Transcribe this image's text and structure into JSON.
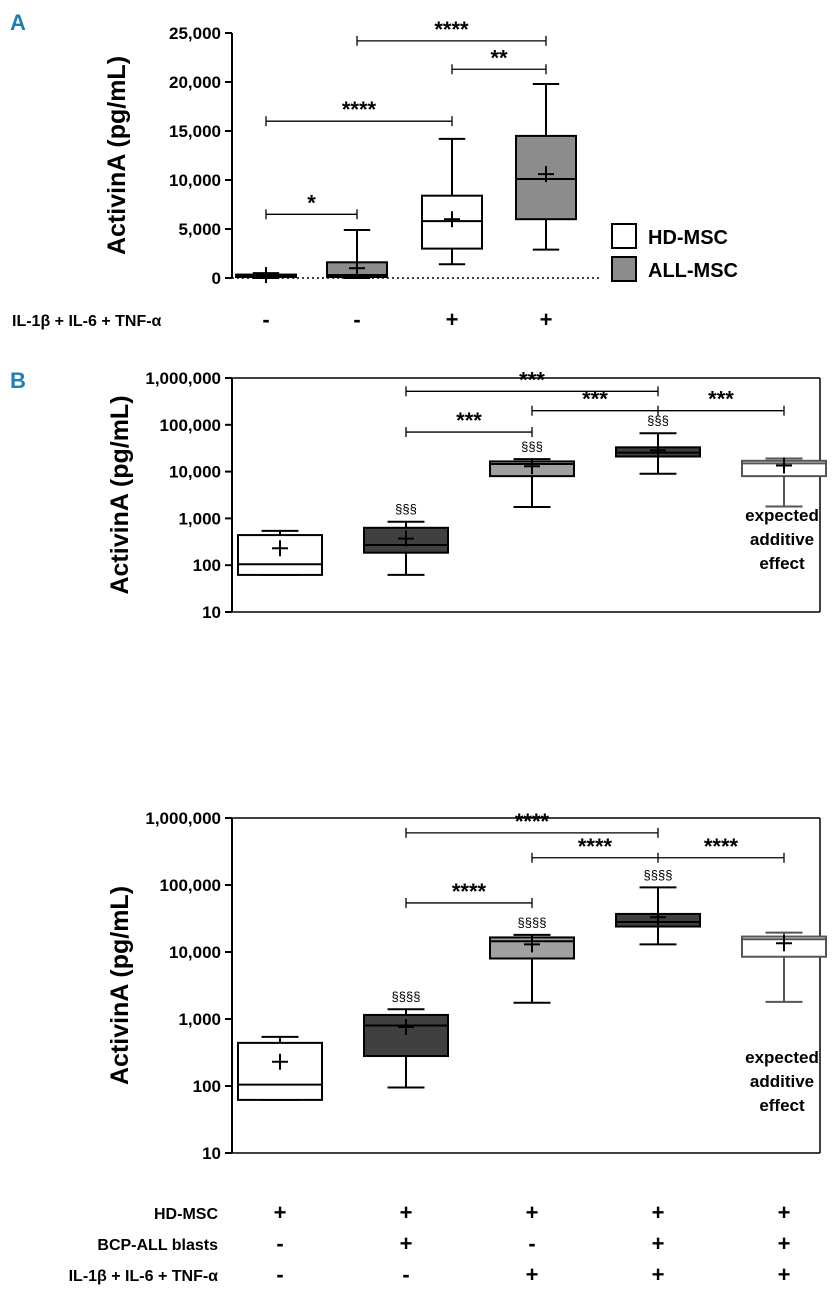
{
  "panel_labels": [
    "A",
    "B"
  ],
  "legend": [
    {
      "label": "HD-MSC",
      "color": "#ffffff"
    },
    {
      "label": "ALL-MSC",
      "color": "#8c8c8c"
    }
  ],
  "rows_a": [
    {
      "label": "IL-1β + IL-6 + TNF-α",
      "values": [
        "-",
        "-",
        "+",
        "+"
      ]
    }
  ],
  "rows_b": [
    {
      "label": "HD-MSC",
      "values": [
        "+",
        "+",
        "+",
        "+",
        "+"
      ]
    },
    {
      "label": "BCP-ALL blasts",
      "values": [
        "-",
        "+",
        "-",
        "+",
        "+"
      ]
    },
    {
      "label": "IL-1β + IL-6 + TNF-α",
      "values": [
        "-",
        "-",
        "+",
        "+",
        "+"
      ]
    }
  ],
  "chart_data": [
    {
      "type": "box",
      "ylabel": "ActivinA (pg/mL)",
      "scale": "linear",
      "ylim": [
        0,
        25000
      ],
      "yticks": [
        0,
        5000,
        10000,
        15000,
        20000,
        25000
      ],
      "ytick_labels": [
        "0",
        "5,000",
        "10,000",
        "15,000",
        "20,000",
        "25,000"
      ],
      "boxes": [
        {
          "min": 0,
          "q1": 100,
          "median": 250,
          "q3": 350,
          "max": 500,
          "mean": 300,
          "color": "#404040"
        },
        {
          "min": 0,
          "q1": 100,
          "median": 300,
          "q3": 1600,
          "max": 4900,
          "mean": 1000,
          "color": "#8c8c8c"
        },
        {
          "min": 1400,
          "q1": 3000,
          "median": 5800,
          "q3": 8400,
          "max": 14200,
          "mean": 6000,
          "color": "#ffffff"
        },
        {
          "min": 2900,
          "q1": 6000,
          "median": 10100,
          "q3": 14500,
          "max": 19800,
          "mean": 10600,
          "color": "#8c8c8c"
        }
      ],
      "brackets": [
        {
          "from": 0,
          "to": 1,
          "y": 6500,
          "label": "*"
        },
        {
          "from": 0,
          "to": 2,
          "y": 16000,
          "label": "****"
        },
        {
          "from": 2,
          "to": 3,
          "y": 21300,
          "label": "**"
        },
        {
          "from": 1,
          "to": 3,
          "y": 24200,
          "label": "****"
        }
      ]
    },
    {
      "type": "box",
      "ylabel": "ActivinA (pg/mL)",
      "scale": "log",
      "ylim": [
        10,
        1000000
      ],
      "yticks": [
        10,
        100,
        1000,
        10000,
        100000,
        1000000
      ],
      "ytick_labels": [
        "10",
        "100",
        "1,000",
        "10,000",
        "100,000",
        "1,000,000"
      ],
      "boxes": [
        {
          "min": 62,
          "q1": 62,
          "median": 105,
          "q3": 440,
          "max": 540,
          "mean": 230,
          "color": "#ffffff",
          "edge": "#000000"
        },
        {
          "min": 62,
          "q1": 185,
          "median": 270,
          "q3": 630,
          "max": 850,
          "mean": 370,
          "color": "#404040",
          "edge": "#000000",
          "mark": "§§§"
        },
        {
          "min": 1750,
          "q1": 8000,
          "median": 14500,
          "q3": 16500,
          "max": 18500,
          "mean": 13000,
          "color": "#a0a0a0",
          "edge": "#000000",
          "mark": "§§§"
        },
        {
          "min": 9000,
          "q1": 21000,
          "median": 25500,
          "q3": 33000,
          "max": 66000,
          "mean": 28500,
          "color": "#404040",
          "edge": "#000000",
          "mark": "§§§"
        },
        {
          "min": 1800,
          "q1": 8000,
          "median": 15000,
          "q3": 17000,
          "max": 19000,
          "mean": 13500,
          "color": "#ffffff",
          "edge": "#555555"
        }
      ],
      "brackets": [
        {
          "from": 1,
          "to": 2,
          "y": 70000,
          "label": "***"
        },
        {
          "from": 2,
          "to": 4,
          "y": 200000,
          "label": "***",
          "hook": "right"
        },
        {
          "from": 1,
          "to": 3,
          "y": 520000,
          "label": "***"
        }
      ],
      "annotation": [
        "expected",
        "additive",
        "effect"
      ]
    },
    {
      "type": "box",
      "ylabel": "ActivinA (pg/mL)",
      "scale": "log",
      "ylim": [
        10,
        1000000
      ],
      "yticks": [
        10,
        100,
        1000,
        10000,
        100000,
        1000000
      ],
      "ytick_labels": [
        "10",
        "100",
        "1,000",
        "10,000",
        "100,000",
        "1,000,000"
      ],
      "boxes": [
        {
          "min": 62,
          "q1": 62,
          "median": 105,
          "q3": 440,
          "max": 540,
          "mean": 230,
          "color": "#ffffff",
          "edge": "#000000"
        },
        {
          "min": 95,
          "q1": 280,
          "median": 800,
          "q3": 1150,
          "max": 1400,
          "mean": 760,
          "color": "#404040",
          "edge": "#000000",
          "mark": "§§§§"
        },
        {
          "min": 1750,
          "q1": 8000,
          "median": 14500,
          "q3": 16500,
          "max": 18000,
          "mean": 13000,
          "color": "#a0a0a0",
          "edge": "#000000",
          "mark": "§§§§"
        },
        {
          "min": 13000,
          "q1": 24000,
          "median": 28000,
          "q3": 37000,
          "max": 92000,
          "mean": 33000,
          "color": "#404040",
          "edge": "#000000",
          "mark": "§§§§"
        },
        {
          "min": 1800,
          "q1": 8500,
          "median": 15500,
          "q3": 17000,
          "max": 19500,
          "mean": 13500,
          "color": "#ffffff",
          "edge": "#555555"
        }
      ],
      "brackets": [
        {
          "from": 1,
          "to": 2,
          "y": 54000,
          "label": "****"
        },
        {
          "from": 2,
          "to": 4,
          "y": 255000,
          "label": "****",
          "hook": "right"
        },
        {
          "from": 1,
          "to": 3,
          "y": 600000,
          "label": "****"
        }
      ],
      "annotation": [
        "expected",
        "additive",
        "effect"
      ]
    }
  ]
}
